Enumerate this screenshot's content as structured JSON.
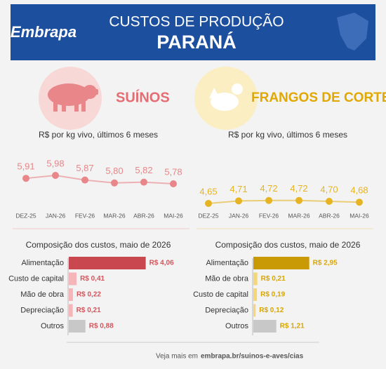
{
  "header": {
    "logo": "Embrapa",
    "title": "CUSTOS DE PRODUÇÃO",
    "subtitle": "PARANÁ"
  },
  "sections": [
    "SUÍNOS",
    "FRANGOS DE CORTE"
  ],
  "footer": {
    "text": "Veja mais em",
    "link": "embrapa.br/suinos-e-aves/cias"
  },
  "chart_data": [
    {
      "type": "line",
      "title": "R$ por kg vivo, últimos 6 meses",
      "categories": [
        "DEZ-25",
        "JAN-26",
        "FEV-26",
        "MAR-26",
        "ABR-26",
        "MAI-26"
      ],
      "values": [
        5.91,
        5.98,
        5.87,
        5.8,
        5.82,
        5.78
      ],
      "value_labels": [
        "5,91",
        "5,98",
        "5,87",
        "5,80",
        "5,82",
        "5,78"
      ],
      "color": "#e8868a"
    },
    {
      "type": "line",
      "title": "R$ por kg vivo, últimos 6 meses",
      "categories": [
        "DEZ-25",
        "JAN-26",
        "FEV-26",
        "MAR-26",
        "ABR-26",
        "MAI-26"
      ],
      "values": [
        4.65,
        4.71,
        4.72,
        4.72,
        4.7,
        4.68
      ],
      "value_labels": [
        "4,65",
        "4,71",
        "4,72",
        "4,72",
        "4,70",
        "4,68"
      ],
      "color": "#e6b422"
    },
    {
      "type": "hbar",
      "title": "Composição dos custos, maio de 2026",
      "categories": [
        "Alimentação",
        "Custo de capital",
        "Mão de obra",
        "Depreciação",
        "Outros"
      ],
      "values": [
        4.06,
        0.41,
        0.22,
        0.21,
        0.88
      ],
      "value_labels": [
        "R$ 4,06",
        "R$ 0,41",
        "R$ 0,22",
        "R$ 0,21",
        "R$ 0,88"
      ],
      "colors": [
        "#c9484f",
        "#f4b6b8",
        "#f4b6b8",
        "#f4b6b8",
        "#c8c8c8"
      ],
      "label_color": "#d2565c"
    },
    {
      "type": "hbar",
      "title": "Composição dos custos, maio de 2026",
      "categories": [
        "Alimentação",
        "Mão de obra",
        "Custo de capital",
        "Depreciação",
        "Outros"
      ],
      "values": [
        2.95,
        0.21,
        0.19,
        0.12,
        1.21
      ],
      "value_labels": [
        "R$ 2,95",
        "R$ 0,21",
        "R$ 0,19",
        "R$ 0,12",
        "R$ 1,21"
      ],
      "colors": [
        "#c99a06",
        "#f5d77a",
        "#f5d77a",
        "#f5d77a",
        "#c8c8c8"
      ],
      "label_color": "#d9a600"
    }
  ]
}
